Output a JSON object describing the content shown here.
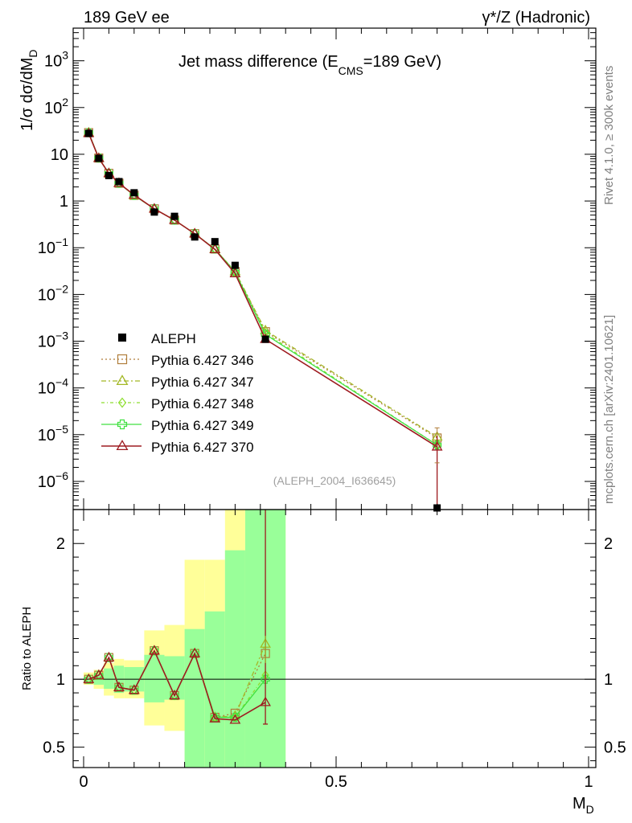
{
  "header": {
    "left": "189 GeV ee",
    "right": "γ*/Z (Hadronic)"
  },
  "side_text": {
    "rivet": "Rivet 4.1.0, ≥ 300k events",
    "mcplots": "mcplots.cern.ch [arXiv:2401.10621]"
  },
  "chart_data": {
    "type": "line",
    "title": "Jet mass difference (E_CMS=189 GeV)",
    "title_parts": {
      "main": "Jet mass difference (E",
      "sub": "CMS",
      "tail": "=189 GeV)"
    },
    "analysis_id": "(ALEPH_2004_I636645)",
    "ylabel_main": "1/σ  dσ/dM",
    "ylabel_sub": "D",
    "ylabel_ratio": "Ratio to ALEPH",
    "xlabel_main": "M",
    "xlabel_sub": "D",
    "xlim": [
      0,
      1
    ],
    "ylim_main_log": [
      2.5e-07,
      5000
    ],
    "ylim_ratio": [
      0.35,
      2.25
    ],
    "x_ticks": [
      "0",
      "0.5",
      "1"
    ],
    "y_ticks_main": [
      {
        "v": 1000,
        "base": "10",
        "exp": "3"
      },
      {
        "v": 100,
        "base": "10",
        "exp": "2"
      },
      {
        "v": 10,
        "base": "10",
        "exp": ""
      },
      {
        "v": 1,
        "base": "1",
        "exp": ""
      },
      {
        "v": 0.1,
        "base": "10",
        "exp": "−1"
      },
      {
        "v": 0.01,
        "base": "10",
        "exp": "−2"
      },
      {
        "v": 0.001,
        "base": "10",
        "exp": "−3"
      },
      {
        "v": 0.0001,
        "base": "10",
        "exp": "−4"
      },
      {
        "v": 1e-05,
        "base": "10",
        "exp": "−5"
      },
      {
        "v": 1e-06,
        "base": "10",
        "exp": "−6"
      }
    ],
    "y_ticks_ratio": [
      "0.5",
      "1",
      "2"
    ],
    "x": [
      0.01,
      0.03,
      0.05,
      0.07,
      0.1,
      0.14,
      0.18,
      0.22,
      0.26,
      0.3,
      0.36,
      0.7
    ],
    "data": {
      "name": "ALEPH",
      "values": [
        28,
        8.2,
        3.5,
        2.6,
        1.5,
        0.58,
        0.47,
        0.17,
        0.135,
        0.042,
        0.0011,
        2.6e-07
      ]
    },
    "bands": [
      {
        "x0": 0.0,
        "x1": 0.02,
        "yellow": [
          0.96,
          1.05
        ],
        "green": [
          0.98,
          1.02
        ]
      },
      {
        "x0": 0.02,
        "x1": 0.04,
        "yellow": [
          0.93,
          1.07
        ],
        "green": [
          0.96,
          1.04
        ]
      },
      {
        "x0": 0.04,
        "x1": 0.06,
        "yellow": [
          0.88,
          1.12
        ],
        "green": [
          0.93,
          1.08
        ]
      },
      {
        "x0": 0.06,
        "x1": 0.08,
        "yellow": [
          0.86,
          1.15
        ],
        "green": [
          0.9,
          1.1
        ]
      },
      {
        "x0": 0.08,
        "x1": 0.12,
        "yellow": [
          0.86,
          1.14
        ],
        "green": [
          0.91,
          1.09
        ]
      },
      {
        "x0": 0.12,
        "x1": 0.16,
        "yellow": [
          0.66,
          1.36
        ],
        "green": [
          0.83,
          1.18
        ]
      },
      {
        "x0": 0.16,
        "x1": 0.2,
        "yellow": [
          0.62,
          1.4
        ],
        "green": [
          0.85,
          1.17
        ]
      },
      {
        "x0": 0.2,
        "x1": 0.24,
        "yellow": [
          0.35,
          1.88
        ],
        "green": [
          0.35,
          1.37
        ]
      },
      {
        "x0": 0.24,
        "x1": 0.28,
        "yellow": [
          0.35,
          1.88
        ],
        "green": [
          0.35,
          1.5
        ]
      },
      {
        "x0": 0.28,
        "x1": 0.32,
        "yellow": [
          0.35,
          2.25
        ],
        "green": [
          0.35,
          1.95
        ]
      },
      {
        "x0": 0.32,
        "x1": 0.4,
        "yellow": [
          0.35,
          2.25
        ],
        "green": [
          0.35,
          2.25
        ]
      }
    ],
    "series": [
      {
        "name": "Pythia 6.427 346",
        "color": "#b07d3a",
        "dash": "2,3",
        "marker": "square",
        "values": [
          29,
          8.3,
          3.9,
          2.4,
          1.32,
          0.68,
          0.39,
          0.2,
          0.094,
          0.031,
          0.0016,
          8.5e-06
        ],
        "ratio": [
          1.0,
          1.03,
          1.16,
          0.94,
          0.92,
          1.21,
          0.88,
          1.19,
          0.72,
          0.75,
          1.19,
          null
        ]
      },
      {
        "name": "Pythia 6.427 347",
        "color": "#a3b825",
        "dash": "6,3,2,3",
        "marker": "triangle",
        "values": [
          29,
          8.3,
          3.9,
          2.4,
          1.32,
          0.68,
          0.39,
          0.2,
          0.094,
          0.031,
          0.0017,
          9e-06
        ],
        "ratio": [
          1.0,
          1.03,
          1.16,
          0.94,
          0.92,
          1.21,
          0.88,
          1.19,
          0.72,
          0.73,
          1.26,
          null
        ]
      },
      {
        "name": "Pythia 6.427 348",
        "color": "#8ede30",
        "dash": "4,3,1,3",
        "marker": "diamond",
        "values": [
          29,
          8.3,
          3.9,
          2.4,
          1.32,
          0.68,
          0.39,
          0.2,
          0.094,
          0.03,
          0.0015,
          6e-06
        ],
        "ratio": [
          1.0,
          1.03,
          1.16,
          0.94,
          0.92,
          1.21,
          0.88,
          1.19,
          0.72,
          0.72,
          1.03,
          null
        ]
      },
      {
        "name": "Pythia 6.427 349",
        "color": "#40e040",
        "dash": "",
        "marker": "cross",
        "values": [
          29,
          8.3,
          3.9,
          2.4,
          1.32,
          0.68,
          0.39,
          0.2,
          0.094,
          0.03,
          0.0014,
          6e-06
        ],
        "ratio": [
          1.0,
          1.03,
          1.16,
          0.94,
          0.92,
          1.21,
          0.88,
          1.19,
          0.72,
          0.72,
          1.0,
          null
        ]
      },
      {
        "name": "Pythia 6.427 370",
        "color": "#9e1b20",
        "dash": "",
        "marker": "triangle",
        "values": [
          28,
          8.2,
          3.9,
          2.4,
          1.35,
          0.68,
          0.39,
          0.2,
          0.092,
          0.028,
          0.0011,
          5.5e-06
        ],
        "ratio": [
          1.0,
          1.03,
          1.16,
          0.94,
          0.92,
          1.21,
          0.88,
          1.19,
          0.71,
          0.7,
          0.83,
          null
        ]
      }
    ],
    "ratio_errbar_370": {
      "x": 0.36,
      "lo": 0.67,
      "hi": 2.25
    }
  }
}
